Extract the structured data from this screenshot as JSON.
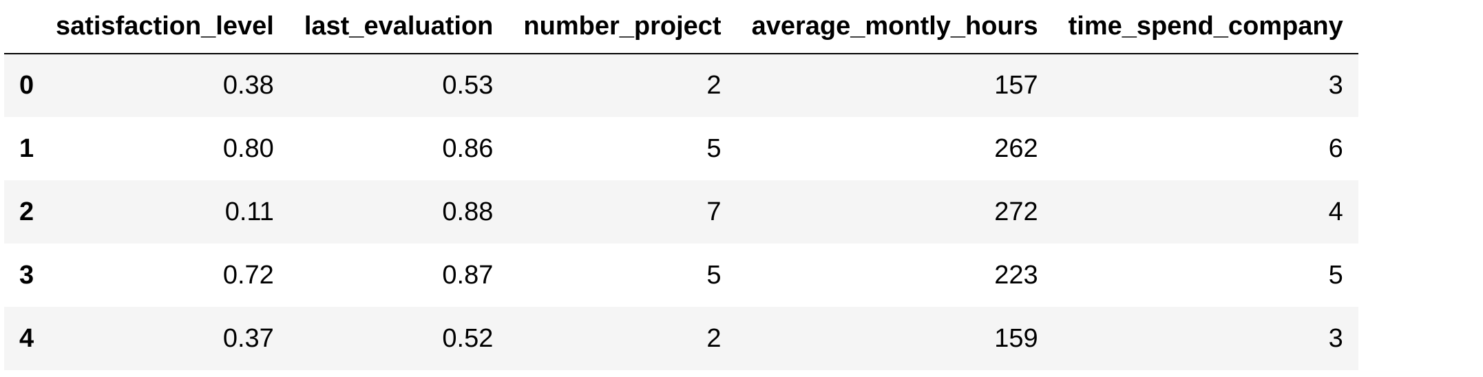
{
  "table": {
    "index_header": "",
    "columns": [
      "satisfaction_level",
      "last_evaluation",
      "number_project",
      "average_montly_hours",
      "time_spend_company"
    ],
    "rows": [
      {
        "index": "0",
        "cells": [
          "0.38",
          "0.53",
          "2",
          "157",
          "3"
        ]
      },
      {
        "index": "1",
        "cells": [
          "0.80",
          "0.86",
          "5",
          "262",
          "6"
        ]
      },
      {
        "index": "2",
        "cells": [
          "0.11",
          "0.88",
          "7",
          "272",
          "4"
        ]
      },
      {
        "index": "3",
        "cells": [
          "0.72",
          "0.87",
          "5",
          "223",
          "5"
        ]
      },
      {
        "index": "4",
        "cells": [
          "0.37",
          "0.52",
          "2",
          "159",
          "3"
        ]
      }
    ],
    "colors": {
      "odd_row_background": "#f5f5f5",
      "even_row_background": "#ffffff",
      "header_border": "#000000"
    }
  }
}
